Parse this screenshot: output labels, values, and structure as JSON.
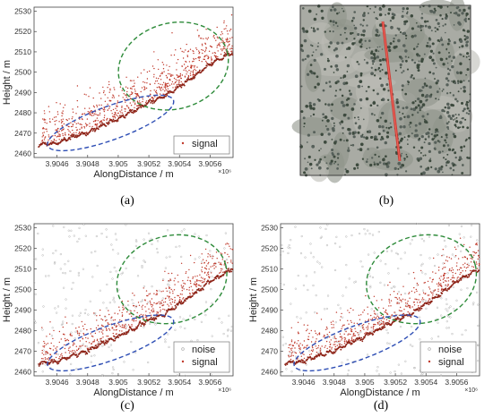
{
  "panels": [
    {
      "id": "a",
      "label": "(a)",
      "ylabel": "Height / m",
      "xlabel": "AlongDistance / m",
      "exponent": "×10⁶",
      "ylim": [
        2458,
        2532
      ],
      "xlim": [
        3.90445,
        3.90575
      ],
      "yticks": [
        "2460",
        "2470",
        "2480",
        "2490",
        "2500",
        "2510",
        "2520",
        "2530"
      ],
      "xticks": [
        "3.9046",
        "3.9048",
        "3.905",
        "3.9052",
        "3.9054",
        "3.9056"
      ],
      "legend": [
        {
          "label": "signal",
          "color": "#c0392b",
          "marker": "dot"
        }
      ],
      "show_noise": false
    },
    {
      "id": "b",
      "label": "(b)",
      "image": "satellite-image-with-red-track"
    },
    {
      "id": "c",
      "label": "(c)",
      "ylabel": "Height / m",
      "xlabel": "AlongDistance / m",
      "exponent": "×10⁶",
      "ylim": [
        2458,
        2532
      ],
      "xlim": [
        3.90445,
        3.90575
      ],
      "yticks": [
        "2460",
        "2470",
        "2480",
        "2490",
        "2500",
        "2510",
        "2520",
        "2530"
      ],
      "xticks": [
        "3.9046",
        "3.9048",
        "3.905",
        "3.9052",
        "3.9054",
        "3.9056"
      ],
      "legend": [
        {
          "label": "noise",
          "color": "#b0b0b0",
          "marker": "dot"
        },
        {
          "label": "signal",
          "color": "#c0392b",
          "marker": "dot"
        }
      ],
      "show_noise": true
    },
    {
      "id": "d",
      "label": "(d)",
      "ylabel": "Height / m",
      "xlabel": "AlongDistance / m",
      "exponent": "×10⁶",
      "ylim": [
        2458,
        2532
      ],
      "xlim": [
        3.90445,
        3.90575
      ],
      "yticks": [
        "2460",
        "2470",
        "2480",
        "2490",
        "2500",
        "2510",
        "2520",
        "2530"
      ],
      "xticks": [
        "3.9046",
        "3.9048",
        "3.905",
        "3.9052",
        "3.9054",
        "3.9056"
      ],
      "legend": [
        {
          "label": "noise",
          "color": "#b0b0b0",
          "marker": "dot"
        },
        {
          "label": "signal",
          "color": "#c0392b",
          "marker": "dot"
        }
      ],
      "show_noise": true
    }
  ],
  "chart_data": [
    {
      "type": "scatter",
      "title": "",
      "xlabel": "AlongDistance / m",
      "ylabel": "Height / m",
      "xlim": [
        3.90445,
        3.90575
      ],
      "ylim": [
        2458,
        2532
      ],
      "ground_profile": {
        "x": [
          3.90445,
          3.9046,
          3.9047,
          3.9048,
          3.9049,
          3.905,
          3.9051,
          3.9052,
          3.9053,
          3.9054,
          3.9055,
          3.9056,
          3.90575
        ],
        "y": [
          2464,
          2465,
          2468,
          2470,
          2474,
          2477,
          2481,
          2485,
          2488,
          2493,
          2498,
          2504,
          2510
        ]
      },
      "series": [
        {
          "name": "signal"
        }
      ]
    },
    {
      "type": "scatter",
      "title": "",
      "xlabel": "AlongDistance / m",
      "ylabel": "Height / m",
      "xlim": [
        3.90445,
        3.90575
      ],
      "ylim": [
        2458,
        2532
      ],
      "series": [
        {
          "name": "noise"
        },
        {
          "name": "signal"
        }
      ]
    },
    {
      "type": "scatter",
      "title": "",
      "xlabel": "AlongDistance / m",
      "ylabel": "Height / m",
      "xlim": [
        3.90445,
        3.90575
      ],
      "ylim": [
        2458,
        2532
      ],
      "series": [
        {
          "name": "noise"
        },
        {
          "name": "signal"
        }
      ]
    }
  ],
  "colors": {
    "signal": "#c0392b",
    "ground": "#8e2418",
    "noise": "#b5b5b5",
    "ellipse_green": "#2e8b3a",
    "ellipse_blue": "#2f4fb5"
  }
}
